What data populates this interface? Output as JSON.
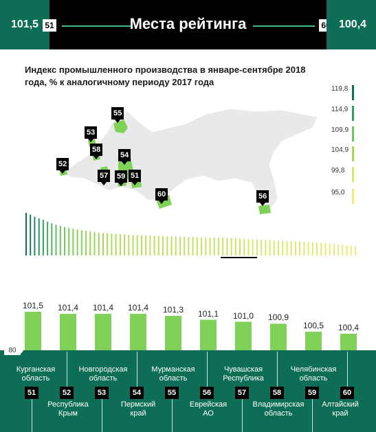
{
  "header": {
    "title": "Места рейтинга",
    "left_value": "101,5",
    "left_rank": "51",
    "right_value": "100,4",
    "right_rank": "60"
  },
  "colors": {
    "dark_green": "#0e6e55",
    "bright_green": "#3fbf7a",
    "bar_green": "#7fd257",
    "light_yellow": "#f0ec7a"
  },
  "chart_data": [
    {
      "type": "bar",
      "title": "Индекс промышленного производства в январе-сентябре 2018 года, % к аналогичному периоду 2017 года",
      "legend": {
        "ticks": [
          "119,8",
          "114,9",
          "109,9",
          "104,9",
          "99,8",
          "95,0"
        ],
        "colors": [
          "#0e6e55",
          "#2f9e63",
          "#6cc85a",
          "#a5d957",
          "#d5e769",
          "#f0ec7a"
        ]
      },
      "values": [
        119.8,
        118.5,
        117.0,
        115.8,
        114.6,
        113.2,
        112.0,
        111.0,
        110.1,
        109.3,
        108.6,
        108.0,
        107.4,
        106.9,
        106.4,
        106.0,
        105.6,
        105.2,
        104.9,
        104.6,
        104.3,
        104.1,
        103.9,
        103.7,
        103.5,
        103.3,
        103.1,
        103.0,
        102.9,
        102.8,
        102.7,
        102.6,
        102.5,
        102.4,
        102.3,
        102.2,
        102.1,
        102.0,
        101.9,
        101.8,
        101.7,
        101.6,
        101.5,
        101.4,
        101.4,
        101.4,
        101.3,
        101.1,
        101.0,
        100.9,
        100.5,
        100.4,
        100.2,
        100.0,
        99.9,
        99.8,
        99.6,
        99.4,
        99.2,
        99.0,
        98.9,
        98.8,
        98.7,
        98.6,
        98.5,
        98.3,
        98.1,
        97.9,
        97.7,
        97.5,
        97.2,
        96.9,
        96.6,
        96.3,
        96.0,
        95.6,
        95.3,
        95.0
      ]
    },
    {
      "type": "bar",
      "axis_min": "80",
      "ylim": [
        80,
        101.5
      ],
      "categories": [
        "Курганская область",
        "Республика Крым",
        "Новгородская область",
        "Пермский край",
        "Мурманская область",
        "Еврейская АО",
        "Чувашская Республика",
        "Владимирская область",
        "Челябинская область",
        "Алтайский край"
      ],
      "ranks": [
        "51",
        "52",
        "53",
        "54",
        "55",
        "56",
        "57",
        "58",
        "59",
        "60"
      ],
      "values": [
        101.5,
        101.4,
        101.4,
        101.4,
        101.3,
        101.1,
        101.0,
        100.9,
        100.5,
        100.4
      ],
      "value_labels": [
        "101,5",
        "101,4",
        "101,4",
        "101,4",
        "101,3",
        "101,1",
        "101,0",
        "100,9",
        "100,5",
        "100,4"
      ]
    }
  ],
  "map": {
    "markers": [
      "55",
      "53",
      "58",
      "54",
      "52",
      "57",
      "59",
      "51",
      "60",
      "56"
    ]
  }
}
